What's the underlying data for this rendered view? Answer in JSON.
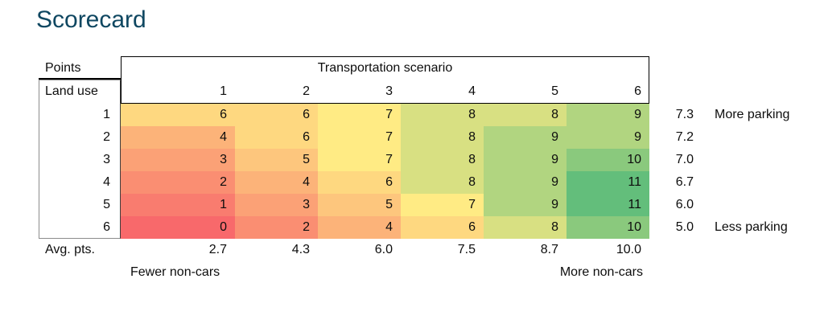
{
  "title": "Scorecard",
  "colors": {
    "title": "#0F4761",
    "heatmap": {
      "0": "#F8696B",
      "1": "#F97C6F",
      "2": "#FA8E72",
      "3": "#FBA176",
      "4": "#FCB379",
      "5": "#FDC67D",
      "6": "#FED880",
      "7": "#FFEB84",
      "8": "#D8E082",
      "9": "#B1D580",
      "10": "#8AC97D",
      "11": "#63BE7B"
    }
  },
  "table": {
    "points_label": "Points",
    "land_use_label": "Land use",
    "scenario_label": "Transportation scenario",
    "column_headers": [
      "1",
      "2",
      "3",
      "4",
      "5",
      "6"
    ],
    "rows": [
      {
        "land_use": "1",
        "values": [
          6,
          6,
          7,
          8,
          8,
          9
        ],
        "avg": "7.3",
        "annotation": "More parking"
      },
      {
        "land_use": "2",
        "values": [
          4,
          6,
          7,
          8,
          9,
          9
        ],
        "avg": "7.2",
        "annotation": ""
      },
      {
        "land_use": "3",
        "values": [
          3,
          5,
          7,
          8,
          9,
          10
        ],
        "avg": "7.0",
        "annotation": ""
      },
      {
        "land_use": "4",
        "values": [
          2,
          4,
          6,
          8,
          9,
          11
        ],
        "avg": "6.7",
        "annotation": ""
      },
      {
        "land_use": "5",
        "values": [
          1,
          3,
          5,
          7,
          9,
          11
        ],
        "avg": "6.0",
        "annotation": ""
      },
      {
        "land_use": "6",
        "values": [
          0,
          2,
          4,
          6,
          8,
          10
        ],
        "avg": "5.0",
        "annotation": "Less parking"
      }
    ],
    "avg_row_label": "Avg. pts.",
    "avg_row_values": [
      "2.7",
      "4.3",
      "6.0",
      "7.5",
      "8.7",
      "10.0"
    ],
    "footer_left": "Fewer non-cars",
    "footer_right": "More non-cars"
  },
  "chart_data": {
    "type": "heatmap",
    "title": "Scorecard",
    "x_axis_label": "Transportation scenario",
    "y_axis_label": "Land use",
    "cell_metric_label": "Points",
    "x_categories": [
      "1",
      "2",
      "3",
      "4",
      "5",
      "6"
    ],
    "y_categories": [
      "1",
      "2",
      "3",
      "4",
      "5",
      "6"
    ],
    "values": [
      [
        6,
        6,
        7,
        8,
        8,
        9
      ],
      [
        4,
        6,
        7,
        8,
        9,
        9
      ],
      [
        3,
        5,
        7,
        8,
        9,
        10
      ],
      [
        2,
        4,
        6,
        8,
        9,
        11
      ],
      [
        1,
        3,
        5,
        7,
        9,
        11
      ],
      [
        0,
        2,
        4,
        6,
        8,
        10
      ]
    ],
    "row_averages": [
      7.3,
      7.2,
      7.0,
      6.7,
      6.0,
      5.0
    ],
    "row_average_annotations": [
      "More parking",
      "",
      "",
      "",
      "",
      "Less parking"
    ],
    "column_averages_label": "Avg. pts.",
    "column_averages": [
      2.7,
      4.3,
      6.0,
      7.5,
      8.7,
      10.0
    ],
    "x_footer_left_annotation": "Fewer non-cars",
    "x_footer_right_annotation": "More non-cars",
    "colormap": "red-yellow-green",
    "color_domain": [
      0,
      7,
      11
    ],
    "legend": "off",
    "grid": "off"
  }
}
